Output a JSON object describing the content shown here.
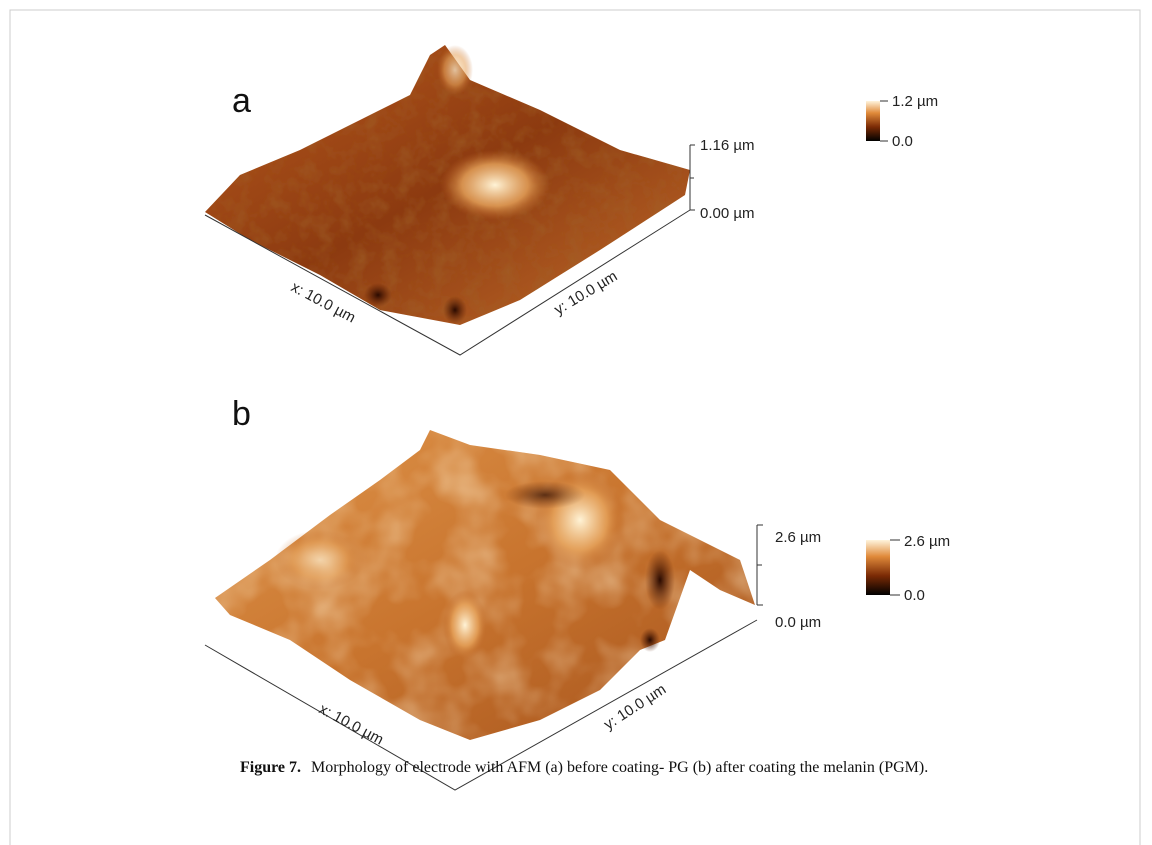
{
  "panels": [
    {
      "label": "a",
      "z_axis": {
        "top": "1.16 µm",
        "bottom": "0.00 µm"
      },
      "x_axis": "x: 10.0 µm",
      "y_axis": "y: 10.0 µm",
      "colorbar": {
        "max": "1.2 µm",
        "min": "0.0"
      }
    },
    {
      "label": "b",
      "z_axis": {
        "top": "2.6 µm",
        "bottom": "0.0 µm"
      },
      "x_axis": "x: 10.0 µm",
      "y_axis": "y: 10.0 µm",
      "colorbar": {
        "max": "2.6 µm",
        "min": "0.0"
      }
    }
  ],
  "caption": {
    "label": "Figure 7.",
    "text": "Morphology of electrode with AFM (a) before coating- PG (b) after coating the melanin (PGM)."
  }
}
